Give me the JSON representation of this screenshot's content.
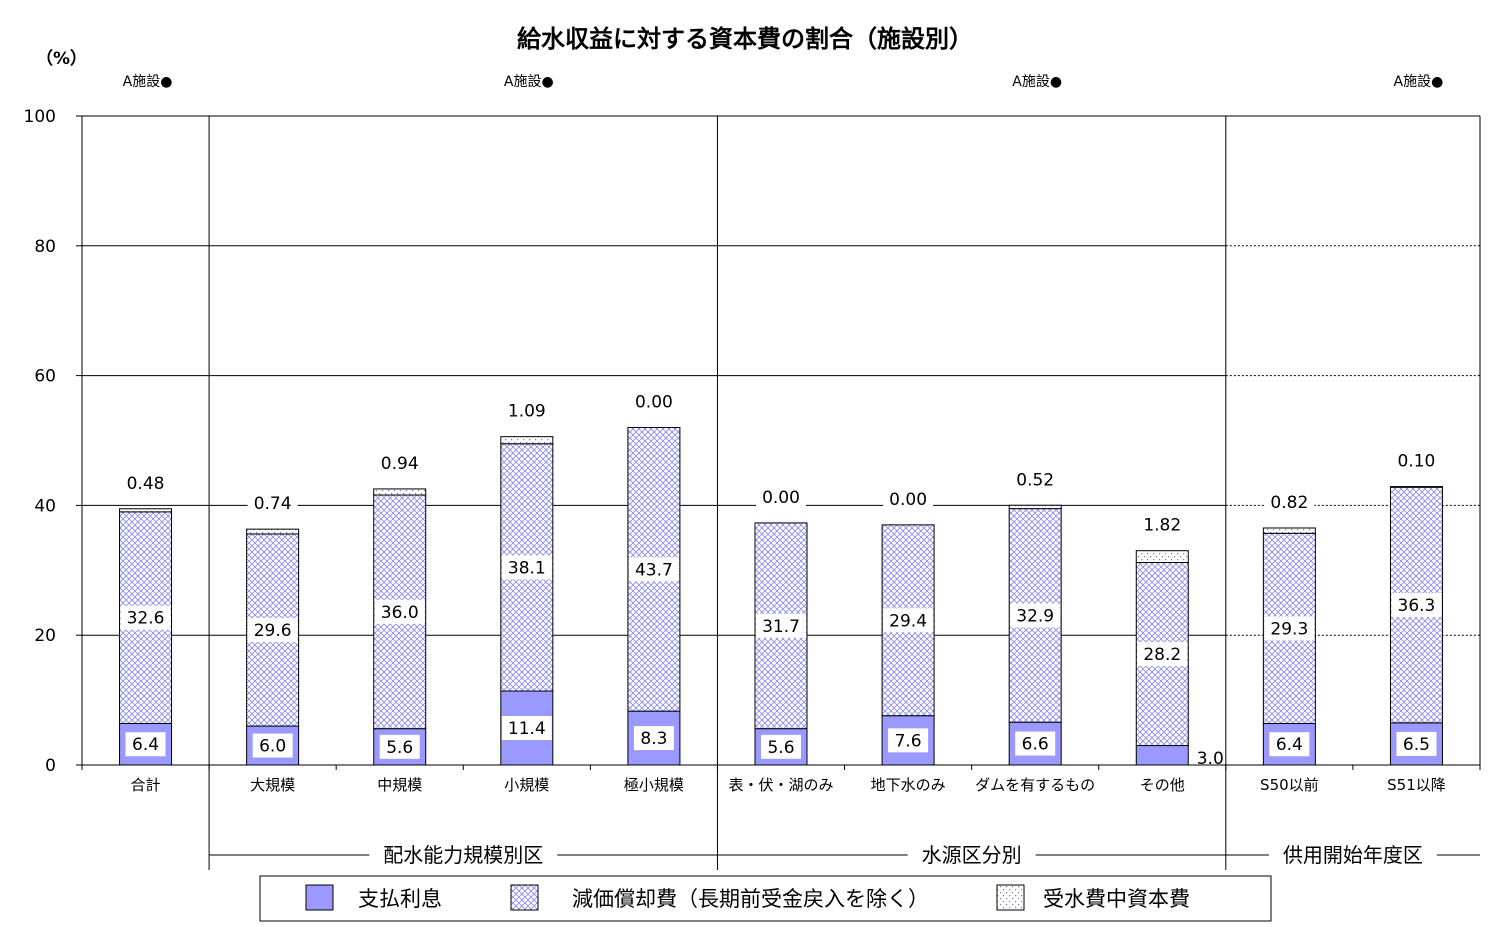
{
  "chart_data": {
    "type": "bar",
    "stacked": true,
    "title": "給水収益に対する資本費の割合（施設別）",
    "y_unit": "（%）",
    "ylim": [
      0,
      100
    ],
    "yticks": [
      0,
      20,
      40,
      60,
      80,
      100
    ],
    "grid": true,
    "legend_position": "bottom",
    "categories": [
      "合計",
      "大規模",
      "中規模",
      "小規模",
      "極小規模",
      "表・伏・湖のみ",
      "地下水のみ",
      "ダムを有するもの",
      "その他",
      "S50以前",
      "S51以降"
    ],
    "groups": [
      {
        "label": "",
        "start": 0,
        "end": 0
      },
      {
        "label": "配水能力規模別区",
        "start": 1,
        "end": 4
      },
      {
        "label": "水源区分別",
        "start": 5,
        "end": 8
      },
      {
        "label": "供用開始年度区",
        "start": 9,
        "end": 10
      }
    ],
    "notes": [
      {
        "text": "A施設●",
        "category": 0
      },
      {
        "text": "A施設●",
        "category": 3
      },
      {
        "text": "A施設●",
        "category": 7
      },
      {
        "text": "A施設●",
        "category": 10
      }
    ],
    "series": [
      {
        "name": "支払利息",
        "pattern": "solid",
        "color": "#9999ff",
        "values": [
          6.4,
          6.0,
          5.6,
          11.4,
          8.3,
          5.6,
          7.6,
          6.6,
          3.0,
          6.4,
          6.5
        ],
        "labels": [
          "6.4",
          "6.0",
          "5.6",
          "11.4",
          "8.3",
          "5.6",
          "7.6",
          "6.6",
          "3.0",
          "6.4",
          "6.5"
        ]
      },
      {
        "name": "減価償却費（長期前受金戻入を除く）",
        "pattern": "cross",
        "color": "#9999ff",
        "values": [
          32.6,
          29.6,
          36.0,
          38.1,
          43.7,
          31.7,
          29.4,
          32.9,
          28.2,
          29.3,
          36.3
        ],
        "labels": [
          "32.6",
          "29.6",
          "36.0",
          "38.1",
          "43.7",
          "31.7",
          "29.4",
          "32.9",
          "28.2",
          "29.3",
          "36.3"
        ]
      },
      {
        "name": "受水費中資本費",
        "pattern": "dots",
        "color": "#9999ff",
        "values": [
          0.48,
          0.74,
          0.94,
          1.09,
          0.0,
          0.0,
          0.0,
          0.52,
          1.82,
          0.82,
          0.1
        ],
        "labels": [
          "0.48",
          "0.74",
          "0.94",
          "1.09",
          "0.00",
          "0.00",
          "0.00",
          "0.52",
          "1.82",
          "0.82",
          "0.10"
        ]
      }
    ]
  }
}
